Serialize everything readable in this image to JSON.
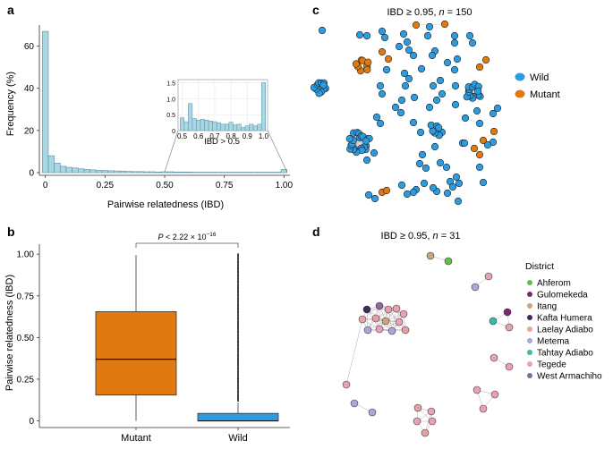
{
  "panel_labels": {
    "a": "a",
    "b": "b",
    "c": "c",
    "d": "d"
  },
  "colors": {
    "hist_fill": "#a9d6e3",
    "hist_stroke": "#5b8fa3",
    "mutant": "#e07a10",
    "wild": "#2c9be0",
    "node_stroke": "#1a1a1a",
    "edge": "#c9c9c9",
    "Ahferom": "#5fbf4a",
    "Gulomekeda": "#7a2a6e",
    "Itang": "#caa57c",
    "Kafta Humera": "#3b2b5a",
    "Laelay Adiabo": "#e8a0a8",
    "Metema": "#a9a6d8",
    "Tahtay Adiabo": "#3fb8a8",
    "Tegede": "#e6a4b2",
    "West Armachiho": "#8a6a9c"
  },
  "chart_data": [
    {
      "type": "bar",
      "panel": "a",
      "title": "",
      "xlabel": "Pairwise relatedness (IBD)",
      "ylabel": "Frequency (%)",
      "xlim": [
        -0.025,
        1.025
      ],
      "ylim": [
        0,
        70
      ],
      "xticks": [
        "0",
        "0.25",
        "0.50",
        "0.75",
        "1.00"
      ],
      "xtick_values": [
        0,
        0.25,
        0.5,
        0.75,
        1.0
      ],
      "yticks": [
        "0",
        "20",
        "40",
        "60"
      ],
      "ytick_values": [
        0,
        20,
        40,
        60
      ],
      "bin_width": 0.025,
      "bin_starts": [
        -0.0125,
        0.0125,
        0.0375,
        0.0625,
        0.0875,
        0.1125,
        0.1375,
        0.1625,
        0.1875,
        0.2125,
        0.2375,
        0.2625,
        0.2875,
        0.3125,
        0.3375,
        0.3625,
        0.3875,
        0.4125,
        0.4375,
        0.4625,
        0.4875,
        0.5125,
        0.5375,
        0.5625,
        0.5875,
        0.6125,
        0.6375,
        0.6625,
        0.6875,
        0.7125,
        0.7375,
        0.7625,
        0.7875,
        0.8125,
        0.8375,
        0.8625,
        0.8875,
        0.9125,
        0.9375,
        0.9625,
        0.9875
      ],
      "values": [
        67,
        8,
        4.5,
        3,
        2.5,
        2.2,
        1.8,
        1.5,
        1.3,
        1.1,
        1.0,
        0.9,
        0.8,
        0.7,
        0.6,
        0.5,
        0.5,
        0.4,
        0.4,
        0.3,
        0.4,
        0.4,
        0.3,
        0.3,
        0.3,
        0.2,
        0.2,
        0.2,
        0.2,
        0.2,
        0.2,
        0.2,
        0.2,
        0.2,
        0.2,
        0.2,
        0.2,
        0.2,
        0.2,
        0.2,
        1.5
      ]
    },
    {
      "type": "bar",
      "panel": "a-inset",
      "title": "IBD > 0.5",
      "xlim": [
        0.475,
        1.025
      ],
      "ylim": [
        0,
        1.6
      ],
      "xticks": [
        "0.5",
        "0.6",
        "0.7",
        "0.8",
        "0.9",
        "1.0"
      ],
      "xtick_values": [
        0.5,
        0.6,
        0.7,
        0.8,
        0.9,
        1.0
      ],
      "yticks": [
        "0",
        "0.5",
        "1.0",
        "1.5"
      ],
      "ytick_values": [
        0,
        0.5,
        1.0,
        1.5
      ],
      "bin_width": 0.025,
      "bin_starts": [
        0.4875,
        0.5125,
        0.5375,
        0.5625,
        0.5875,
        0.6125,
        0.6375,
        0.6625,
        0.6875,
        0.7125,
        0.7375,
        0.7625,
        0.7875,
        0.8125,
        0.8375,
        0.8625,
        0.8875,
        0.9125,
        0.9375,
        0.9625,
        0.9875
      ],
      "values": [
        0.4,
        0.28,
        0.85,
        0.38,
        0.33,
        0.36,
        0.33,
        0.3,
        0.28,
        0.25,
        0.2,
        0.2,
        0.26,
        0.18,
        0.2,
        0.1,
        0.15,
        0.2,
        0.15,
        0.2,
        1.5
      ]
    },
    {
      "type": "box",
      "panel": "b",
      "title": "",
      "xlabel": "",
      "ylabel": "Pairwise relatedness (IBD)",
      "ylim": [
        -0.04,
        1.06
      ],
      "yticks": [
        "0",
        "0.25",
        "0.50",
        "0.75",
        "1.00"
      ],
      "ytick_values": [
        0,
        0.25,
        0.5,
        0.75,
        1.0
      ],
      "categories": [
        "Mutant",
        "Wild"
      ],
      "boxes": [
        {
          "name": "Mutant",
          "min": 0,
          "q1": 0.155,
          "median": 0.37,
          "q3": 0.655,
          "max": 0.995
        },
        {
          "name": "Wild",
          "min": 0,
          "q1": 0,
          "median": 0,
          "q3": 0.045,
          "max": 0.11,
          "outlier_range": [
            0.12,
            1.0
          ]
        }
      ],
      "annotation": {
        "p_prefix": "P",
        "p_text": " < 2.22 × 10",
        "p_exp": "−16"
      }
    },
    {
      "type": "network",
      "panel": "c",
      "title_prefix": "IBD ≥ 0.95, ",
      "title_n_label": "n",
      "title_n_value": "= 150",
      "legend": [
        {
          "label": "Wild",
          "color_key": "wild"
        },
        {
          "label": "Mutant",
          "color_key": "mutant"
        }
      ],
      "node_count": 150
    },
    {
      "type": "network",
      "panel": "d",
      "title_prefix": "IBD ≥ 0.95, ",
      "title_n_label": "n",
      "title_n_value": "= 31",
      "legend_title": "District",
      "legend": [
        "Ahferom",
        "Gulomekeda",
        "Itang",
        "Kafta Humera",
        "Laelay Adiabo",
        "Metema",
        "Tahtay Adiabo",
        "Tegede",
        "West Armachiho"
      ],
      "node_count": 31
    }
  ]
}
